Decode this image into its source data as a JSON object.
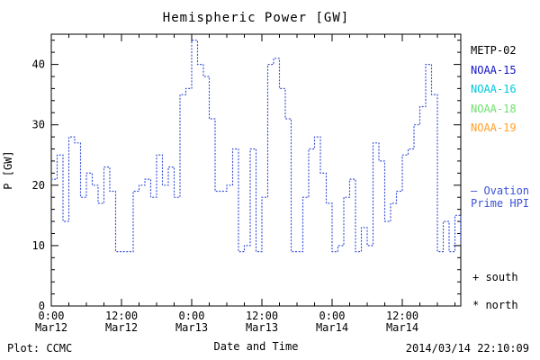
{
  "footer": {
    "plot_credit": "Plot: CCMC",
    "timestamp": "2014/03/14 22:10:09"
  },
  "legend": {
    "satellites": [
      {
        "label": "METP-02",
        "color": "#000000"
      },
      {
        "label": "NOAA-15",
        "color": "#1414c8"
      },
      {
        "label": "NOAA-16",
        "color": "#00c8dc"
      },
      {
        "label": "NOAA-18",
        "color": "#6ee06e"
      },
      {
        "label": "NOAA-19",
        "color": "#ffa028"
      }
    ],
    "ovation_line1": "— Ovation",
    "ovation_line2": "Prime HPI",
    "south_marker": "+ south",
    "north_marker": "* north"
  },
  "chart_data": {
    "type": "line",
    "style": "stepped-dotted",
    "title": "Hemispheric Power [GW]",
    "xlabel": "Date and Time",
    "ylabel": "P [GW]",
    "line_color": "#3a52d8",
    "ylim": [
      0,
      45
    ],
    "xlim_hours": [
      0,
      70
    ],
    "yticks": [
      0,
      10,
      20,
      30,
      40
    ],
    "y_minor_step": 2,
    "x_minor_step": 3,
    "xticks": [
      {
        "hour": 0,
        "time": "0:00",
        "date": "Mar12"
      },
      {
        "hour": 12,
        "time": "12:00",
        "date": "Mar12"
      },
      {
        "hour": 24,
        "time": "0:00",
        "date": "Mar13"
      },
      {
        "hour": 36,
        "time": "12:00",
        "date": "Mar13"
      },
      {
        "hour": 48,
        "time": "0:00",
        "date": "Mar14"
      },
      {
        "hour": 60,
        "time": "12:00",
        "date": "Mar14"
      }
    ],
    "x_hours": [
      0,
      1,
      2,
      3,
      4,
      5,
      6,
      7,
      8,
      9,
      10,
      11,
      12,
      13,
      14,
      15,
      16,
      17,
      18,
      19,
      20,
      21,
      22,
      23,
      24,
      25,
      26,
      27,
      28,
      29,
      30,
      31,
      32,
      33,
      34,
      35,
      36,
      37,
      38,
      39,
      40,
      41,
      42,
      43,
      44,
      45,
      46,
      47,
      48,
      49,
      50,
      51,
      52,
      53,
      54,
      55,
      56,
      57,
      58,
      59,
      60,
      61,
      62,
      63,
      64,
      65,
      66,
      67,
      68,
      69,
      70
    ],
    "values": [
      21,
      25,
      14,
      28,
      27,
      18,
      22,
      20,
      17,
      23,
      19,
      9,
      9,
      9,
      19,
      20,
      21,
      18,
      25,
      20,
      23,
      18,
      35,
      36,
      44,
      40,
      38,
      31,
      19,
      19,
      20,
      26,
      9,
      10,
      26,
      9,
      18,
      40,
      41,
      36,
      31,
      9,
      9,
      18,
      26,
      28,
      22,
      17,
      9,
      10,
      18,
      21,
      9,
      13,
      10,
      27,
      24,
      14,
      17,
      19,
      25,
      26,
      30,
      33,
      40,
      35,
      9,
      14,
      9,
      15,
      10
    ]
  }
}
